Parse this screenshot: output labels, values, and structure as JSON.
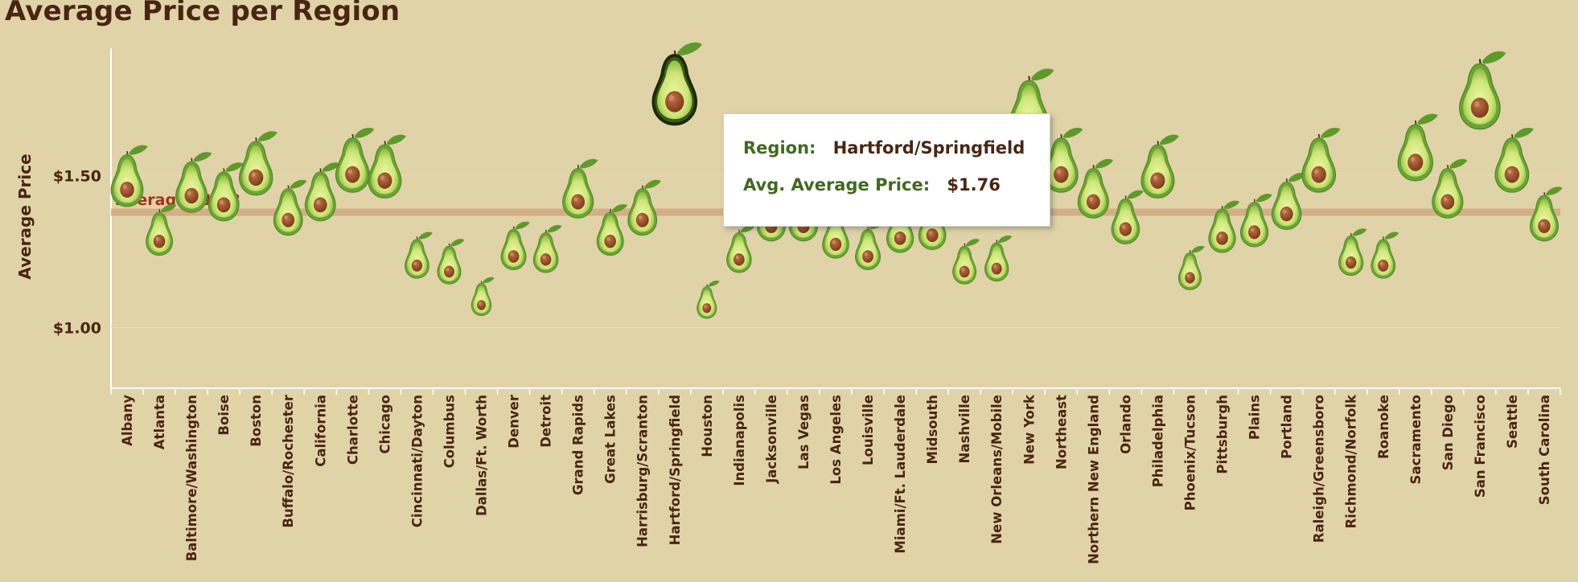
{
  "title": "Average Price per Region",
  "colors": {
    "background": "#e0d3a8",
    "text": "#4a2512",
    "average_line": "#d0a781",
    "average_label": "#a33219",
    "tooltip_key": "#3f6a1e"
  },
  "chart_data": {
    "type": "scatter",
    "marker": "avocado-icon",
    "ylabel": "Average Price",
    "ylim": [
      0.8,
      1.92
    ],
    "yticks": [
      {
        "value": 1.0,
        "label": "$1.00"
      },
      {
        "value": 1.5,
        "label": "$1.50"
      }
    ],
    "average": {
      "value": 1.38,
      "label": "Average $1.38"
    },
    "categories": [
      "Albany",
      "Atlanta",
      "Baltimore/Washington",
      "Boise",
      "Boston",
      "Buffalo/Rochester",
      "California",
      "Charlotte",
      "Chicago",
      "Cincinnati/Dayton",
      "Columbus",
      "Dallas/Ft. Worth",
      "Denver",
      "Detroit",
      "Grand Rapids",
      "Great Lakes",
      "Harrisburg/Scranton",
      "Hartford/Springfield",
      "Houston",
      "Indianapolis",
      "Jacksonville",
      "Las Vegas",
      "Los Angeles",
      "Louisville",
      "Miami/Ft. Lauderdale",
      "Midsouth",
      "Nashville",
      "New Orleans/Mobile",
      "New York",
      "Northeast",
      "Northern New England",
      "Orlando",
      "Philadelphia",
      "Phoenix/Tucson",
      "Pittsburgh",
      "Plains",
      "Portland",
      "Raleigh/Greensboro",
      "Richmond/Norfolk",
      "Roanoke",
      "Sacramento",
      "San Diego",
      "San Francisco",
      "Seattle",
      "South Carolina"
    ],
    "values": [
      1.47,
      1.3,
      1.45,
      1.42,
      1.51,
      1.37,
      1.42,
      1.52,
      1.5,
      1.22,
      1.2,
      1.09,
      1.25,
      1.24,
      1.43,
      1.3,
      1.37,
      1.76,
      1.08,
      1.24,
      1.35,
      1.35,
      1.29,
      1.25,
      1.31,
      1.32,
      1.2,
      1.21,
      1.69,
      1.52,
      1.43,
      1.34,
      1.5,
      1.18,
      1.31,
      1.33,
      1.39,
      1.52,
      1.23,
      1.22,
      1.56,
      1.43,
      1.74,
      1.52,
      1.35
    ],
    "highlighted": "Hartford/Springfield",
    "grid": false
  },
  "tooltip": {
    "region_key": "Region:",
    "region_value": "Hartford/Springfield",
    "price_key": "Avg. Average Price:",
    "price_value": "$1.76"
  }
}
